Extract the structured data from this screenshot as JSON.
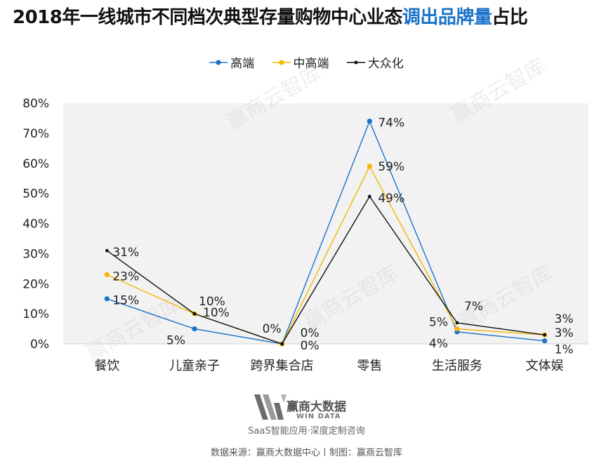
{
  "title": {
    "part1": "2018年一线城市不同档次典型存量购物中心业态",
    "highlight": "调出品牌量",
    "part2": "占比"
  },
  "chart_data": {
    "type": "line",
    "categories": [
      "餐饮",
      "儿童亲子",
      "跨界集合店",
      "零售",
      "生活服务",
      "文体娱"
    ],
    "series": [
      {
        "name": "高端",
        "color": "#1a73c9",
        "values": [
          15,
          5,
          0,
          74,
          4,
          1
        ],
        "labels": [
          "15%",
          "5%",
          "0%",
          "74%",
          "4%",
          "1%"
        ]
      },
      {
        "name": "中高端",
        "color": "#f7b500",
        "values": [
          23,
          10,
          0,
          59,
          5,
          3
        ],
        "labels": [
          "23%",
          "10%",
          "0%",
          "59%",
          "5%",
          "3%"
        ]
      },
      {
        "name": "大众化",
        "color": "#111111",
        "values": [
          31,
          10,
          0,
          49,
          7,
          3
        ],
        "labels": [
          "31%",
          "10%",
          "0%",
          "49%",
          "7%",
          "3%"
        ]
      }
    ],
    "yticks": [
      "0%",
      "10%",
      "20%",
      "30%",
      "40%",
      "50%",
      "60%",
      "70%",
      "80%"
    ],
    "ylim": [
      0,
      80
    ],
    "grid": false,
    "legend": "top-center"
  },
  "watermark": "赢商云智库",
  "footer": {
    "logo_text": "赢商大数据",
    "logo_sub": "WIN DATA",
    "tagline": "SaaS智能应用·深度定制咨询",
    "source": "数据来源：赢商大数据中心丨制图：赢商云智库"
  }
}
